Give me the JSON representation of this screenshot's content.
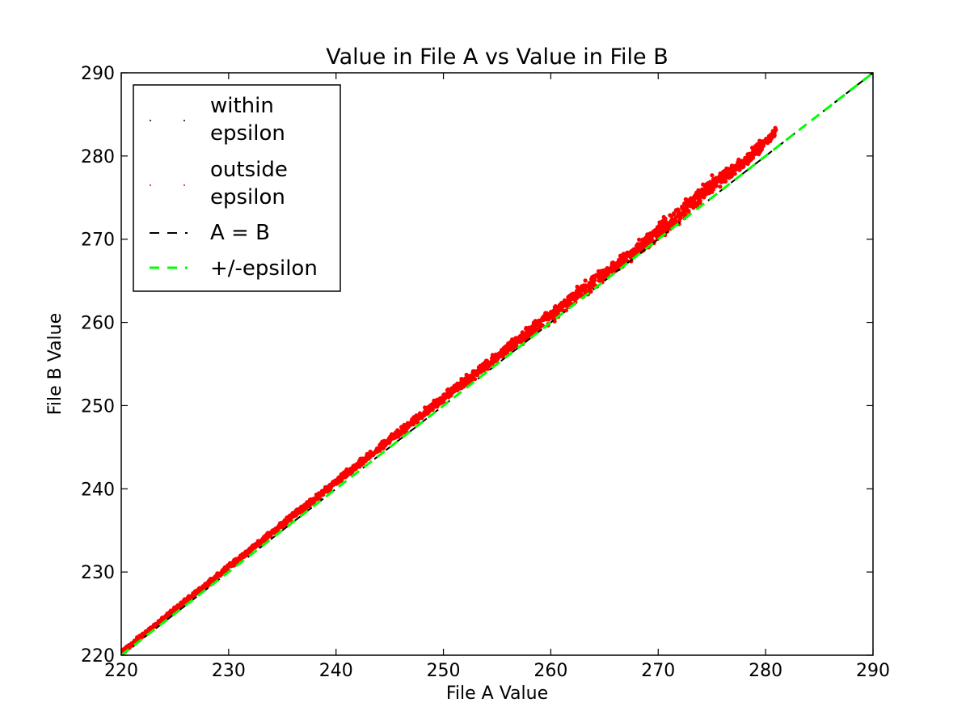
{
  "chart_data": {
    "type": "scatter",
    "title": "Value in File A vs Value in File B",
    "xlabel": "File A Value",
    "ylabel": "File B Value",
    "xlim": [
      220,
      290
    ],
    "ylim": [
      220,
      290
    ],
    "xticks": [
      220,
      230,
      240,
      250,
      260,
      270,
      280,
      290
    ],
    "yticks": [
      220,
      230,
      240,
      250,
      260,
      270,
      280,
      290
    ],
    "grid": false,
    "legend": {
      "placement": "top-left",
      "entries": [
        {
          "label_lines": [
            "within",
            "epsilon"
          ],
          "style": "points",
          "color": "#000000"
        },
        {
          "label_lines": [
            "outside",
            "epsilon"
          ],
          "style": "points",
          "color": "#ff0000"
        },
        {
          "label_lines": [
            "A = B"
          ],
          "style": "dashed-line",
          "color": "#000000"
        },
        {
          "label_lines": [
            "+/-epsilon"
          ],
          "style": "dashed-line",
          "color": "#00ff00"
        }
      ]
    },
    "series": [
      {
        "name": "outside epsilon",
        "color": "#ff0000",
        "style": "dense-scatter-band",
        "band_center": [
          [
            220,
            220.3
          ],
          [
            225,
            225.5
          ],
          [
            230,
            230.6
          ],
          [
            235,
            235.7
          ],
          [
            240,
            240.8
          ],
          [
            245,
            245.9
          ],
          [
            250,
            250.9
          ],
          [
            255,
            255.9
          ],
          [
            260,
            260.8
          ],
          [
            262,
            262.9
          ],
          [
            265,
            265.8
          ],
          [
            268,
            268.8
          ],
          [
            270,
            270.9
          ],
          [
            273,
            274.2
          ],
          [
            275,
            276.6
          ],
          [
            278,
            279.2
          ],
          [
            281,
            283.0
          ]
        ],
        "band_half_width": [
          0.3,
          0.3,
          0.35,
          0.4,
          0.45,
          0.5,
          0.55,
          0.6,
          0.9,
          1.1,
          0.8,
          0.9,
          1.2,
          1.0,
          1.0,
          0.9,
          0.6
        ]
      },
      {
        "name": "A = B",
        "color": "#000000",
        "style": "dashed-line",
        "points": [
          [
            220,
            220
          ],
          [
            290,
            290
          ]
        ]
      },
      {
        "name": "+/-epsilon",
        "color": "#00ff00",
        "style": "dashed-line",
        "points": [
          [
            220,
            220
          ],
          [
            290,
            290
          ]
        ]
      }
    ]
  }
}
